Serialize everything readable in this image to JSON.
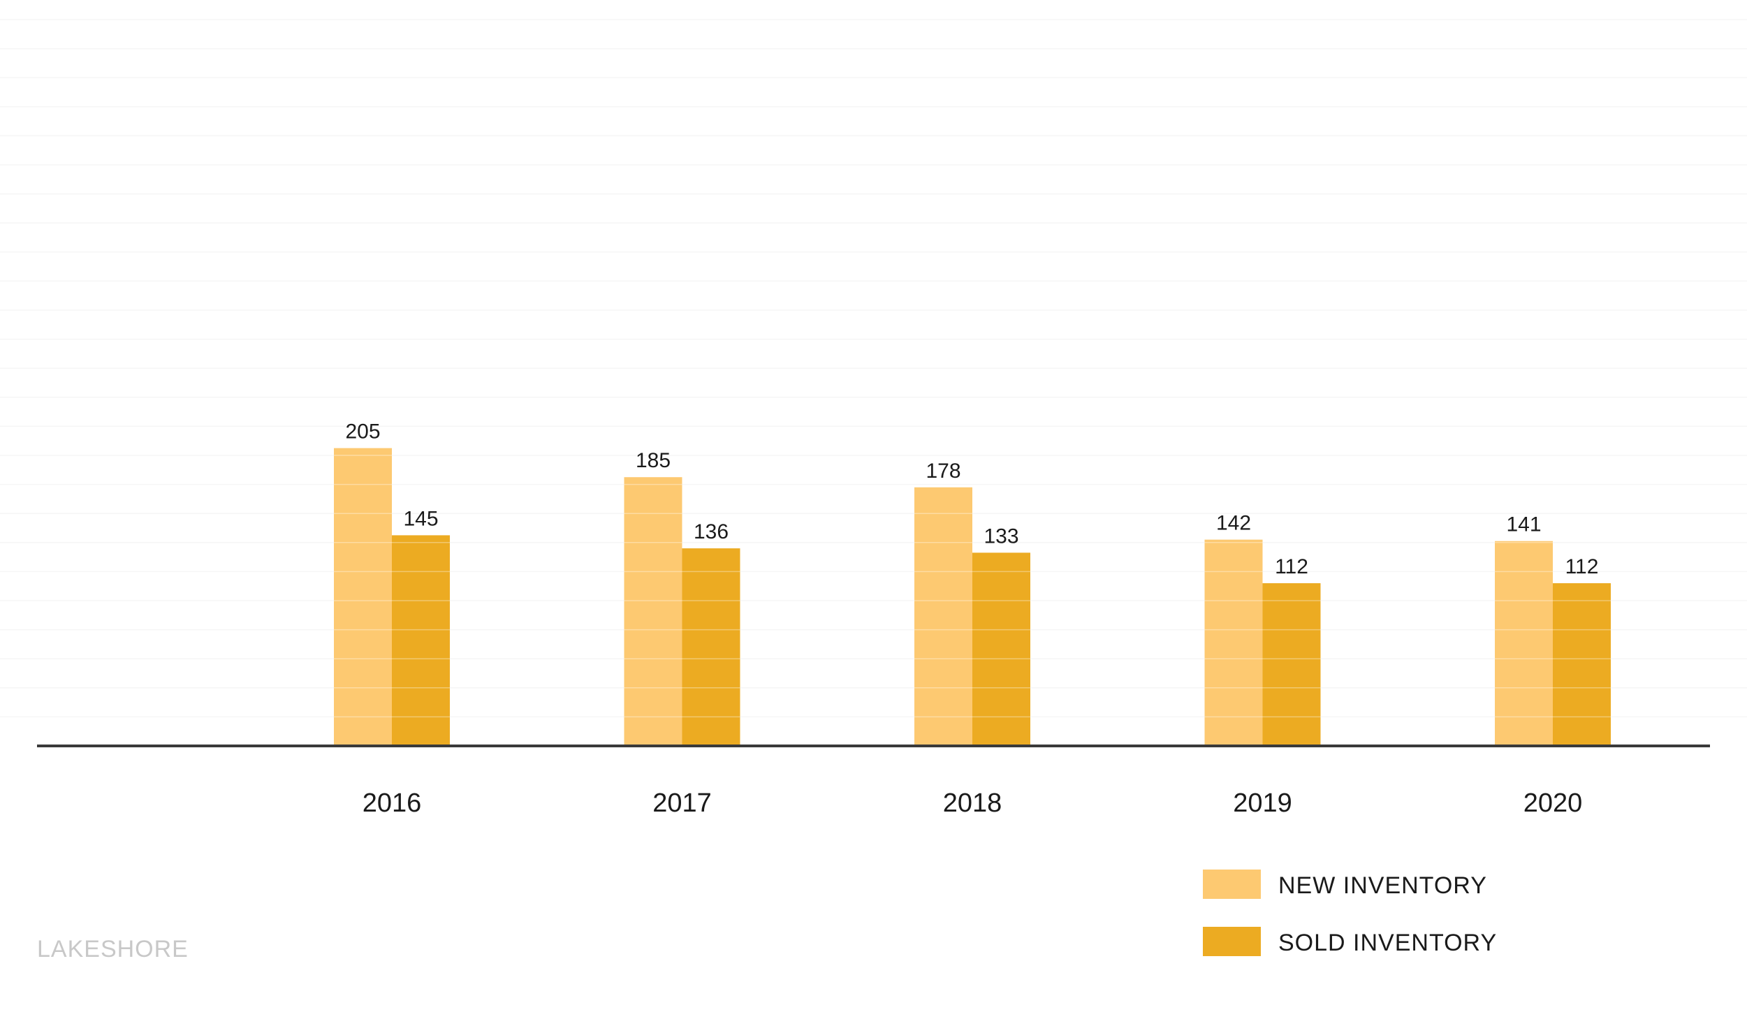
{
  "chart_data": {
    "type": "bar",
    "categories": [
      "2016",
      "2017",
      "2018",
      "2019",
      "2020"
    ],
    "series": [
      {
        "name": "NEW INVENTORY",
        "values": [
          205,
          185,
          178,
          142,
          141
        ],
        "color": "#fdc971"
      },
      {
        "name": "SOLD INVENTORY",
        "values": [
          145,
          136,
          133,
          112,
          112
        ],
        "color": "#ecab22"
      }
    ],
    "title": "",
    "xlabel": "",
    "ylabel": "",
    "ylim": [
      0,
      500
    ],
    "grid": true,
    "legend_position": "bottom-right"
  },
  "brand": {
    "watermark": "LAKESHORE"
  }
}
